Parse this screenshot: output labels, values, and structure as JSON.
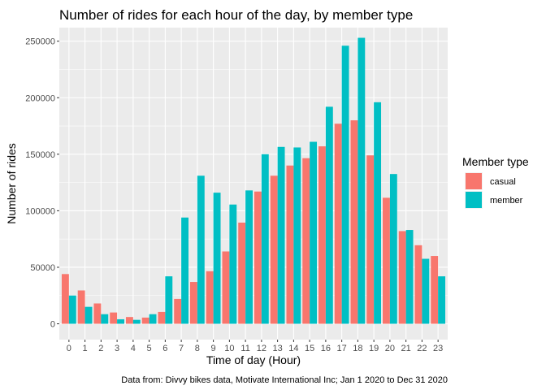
{
  "chart_data": {
    "type": "bar",
    "title": "Number of rides for each hour of the day, by member type",
    "xlabel": "Time of day (Hour)",
    "ylabel": "Number of rides",
    "caption": "Data from: Divvy bikes data, Motivate International Inc; Jan 1 2020 to Dec 31 2020",
    "categories": [
      "0",
      "1",
      "2",
      "3",
      "4",
      "5",
      "6",
      "7",
      "8",
      "9",
      "10",
      "11",
      "12",
      "13",
      "14",
      "15",
      "16",
      "17",
      "18",
      "19",
      "20",
      "21",
      "22",
      "23"
    ],
    "series": [
      {
        "name": "casual",
        "color": "#F8766D",
        "values": [
          44000,
          29500,
          18000,
          10000,
          6000,
          5500,
          10500,
          22000,
          37000,
          46500,
          64000,
          89500,
          117000,
          131000,
          140000,
          146500,
          157000,
          177000,
          180000,
          149000,
          111500,
          82000,
          69500,
          60000
        ]
      },
      {
        "name": "member",
        "color": "#00BFC4",
        "values": [
          25000,
          15000,
          8500,
          4000,
          3500,
          8500,
          42000,
          94000,
          131000,
          116000,
          105500,
          118000,
          150000,
          156500,
          156000,
          161000,
          192000,
          246000,
          253000,
          196000,
          132500,
          83000,
          57500,
          42000
        ]
      }
    ],
    "ylim": [
      -14000,
      262000
    ],
    "yticks": [
      0,
      50000,
      100000,
      150000,
      200000,
      250000
    ],
    "ytick_labels": [
      "0",
      "50000",
      "100000",
      "150000",
      "200000",
      "250000"
    ],
    "legend": {
      "title": "Member type",
      "placement": "right"
    },
    "panel_background": "#EBEBEB",
    "grid": true
  }
}
